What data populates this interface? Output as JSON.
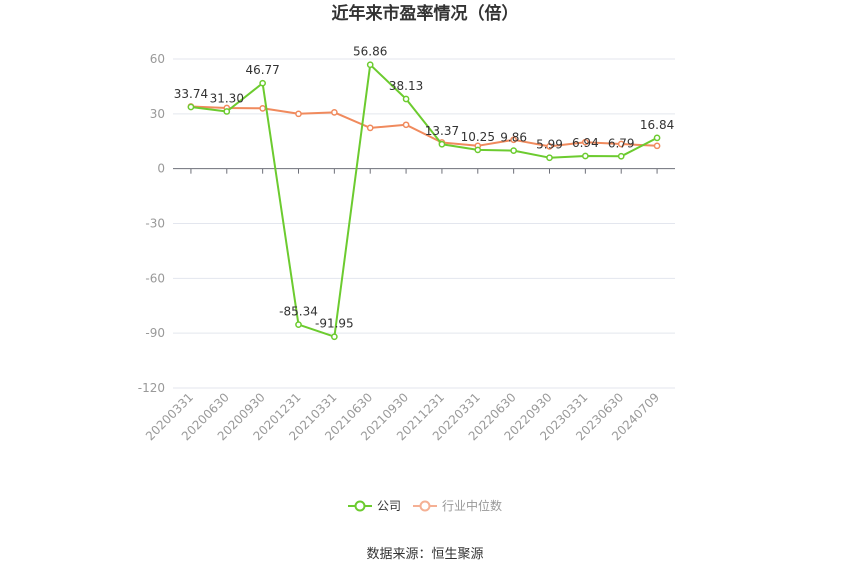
{
  "chart_data": {
    "type": "line",
    "title": "近年来市盈率情况（倍）",
    "categories": [
      "20200331",
      "20200630",
      "20200930",
      "20201231",
      "20210331",
      "20210630",
      "20210930",
      "20211231",
      "20220331",
      "20220630",
      "20220930",
      "20230331",
      "20230630",
      "20240709"
    ],
    "ylim": [
      -120,
      60
    ],
    "yticks": [
      60,
      30,
      0,
      -30,
      -60,
      -90,
      -120
    ],
    "grid": true,
    "legend_position": "bottom",
    "series": [
      {
        "name": "公司",
        "color": "#6ccb2f",
        "values": [
          33.74,
          31.3,
          46.77,
          -85.34,
          -91.95,
          56.86,
          38.13,
          13.37,
          10.25,
          9.86,
          5.99,
          6.94,
          6.79,
          16.84
        ],
        "labels": [
          "33.74",
          "31.30",
          "46.77",
          "-85.34",
          "-91.95",
          "56.86",
          "38.13",
          "13.37",
          "10.25",
          "9.86",
          "5.99",
          "6.94",
          "6.79",
          "16.84"
        ]
      },
      {
        "name": "行业中位数",
        "color": "#f08a5d",
        "values": [
          34.0,
          33.2,
          33.0,
          30.0,
          30.8,
          22.3,
          24.0,
          14.3,
          12.5,
          15.8,
          12.2,
          14.5,
          13.5,
          12.5
        ]
      }
    ]
  },
  "source": "数据来源：恒生聚源"
}
